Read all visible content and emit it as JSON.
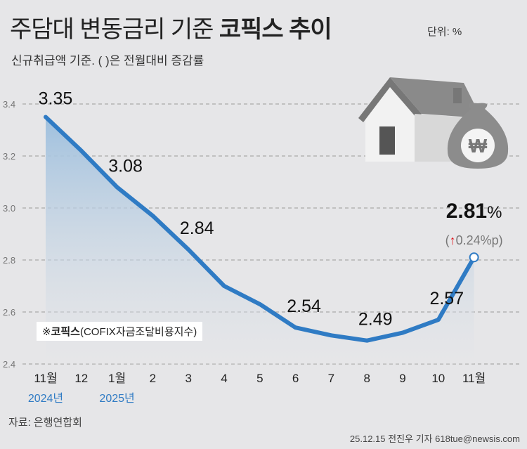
{
  "header": {
    "title_part1": "주담대 변동금리 기준 ",
    "title_part2": "코픽스 추이",
    "unit": "단위: %",
    "subtitle": "신규취급액 기준. ( )은 전월대비 증감률"
  },
  "note": {
    "mark": "※",
    "bold": "코픽스",
    "rest": "(COFIX자금조달비용지수)"
  },
  "footer": {
    "source": "자료: 은행연합회",
    "credit": "25.12.15 전진우 기자 618tue@newsis.com"
  },
  "colors": {
    "line": "#2f7bc4",
    "area_top": "#9fc0de",
    "background": "#e6e6e8",
    "up_arrow": "#e0161e",
    "year_label": "#2f7bc4"
  },
  "icons": [
    "house-icon",
    "won-money-bag-icon"
  ],
  "chart_data": {
    "type": "area",
    "categories": [
      "11월",
      "12",
      "1월",
      "2",
      "3",
      "4",
      "5",
      "6",
      "7",
      "8",
      "9",
      "10",
      "11월"
    ],
    "year_labels": [
      {
        "index": 0,
        "label": "2024년"
      },
      {
        "index": 2,
        "label": "2025년"
      }
    ],
    "values": [
      3.35,
      3.22,
      3.08,
      2.97,
      2.84,
      2.7,
      2.63,
      2.54,
      2.51,
      2.49,
      2.52,
      2.57,
      2.81
    ],
    "data_labels": {
      "0": "3.35",
      "2": "3.08",
      "4": "2.84",
      "7": "2.54",
      "9": "2.49",
      "11": "2.57"
    },
    "last_label": {
      "value": "2.81",
      "suffix": "%",
      "change": "0.24%p",
      "direction": "up"
    },
    "yticks": [
      "3.4",
      "3.2",
      "3.0",
      "2.8",
      "2.6",
      "2.4"
    ],
    "ylim": [
      2.4,
      3.4
    ],
    "grid": true
  }
}
